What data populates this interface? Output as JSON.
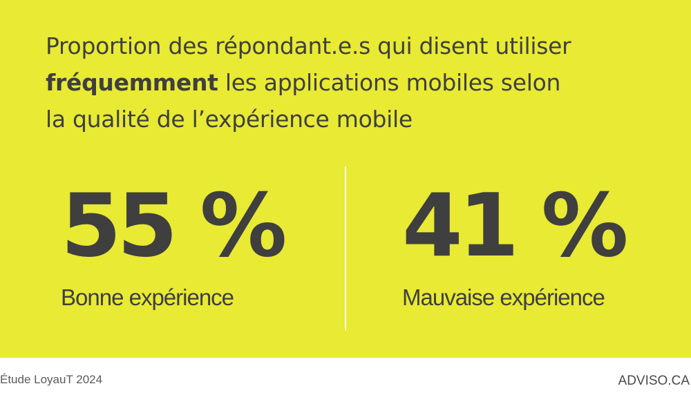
{
  "theme": {
    "background": "#e8ea34",
    "text": "#3f3f3f",
    "divider": "#ffffff",
    "footer_background": "#ffffff"
  },
  "title": {
    "line1": "Proportion des répondant.e.s qui disent utiliser",
    "line2_bold": "fréquemment",
    "line2_rest": " les applications mobiles selon",
    "line3": "la qualité de l’expérience mobile"
  },
  "stats": [
    {
      "value": "55 %",
      "label": "Bonne expérience"
    },
    {
      "value": "41 %",
      "label": "Mauvaise expérience"
    }
  ],
  "footer": {
    "source": "Étude LoyauT 2024",
    "brand": "ADVISO.CA"
  }
}
